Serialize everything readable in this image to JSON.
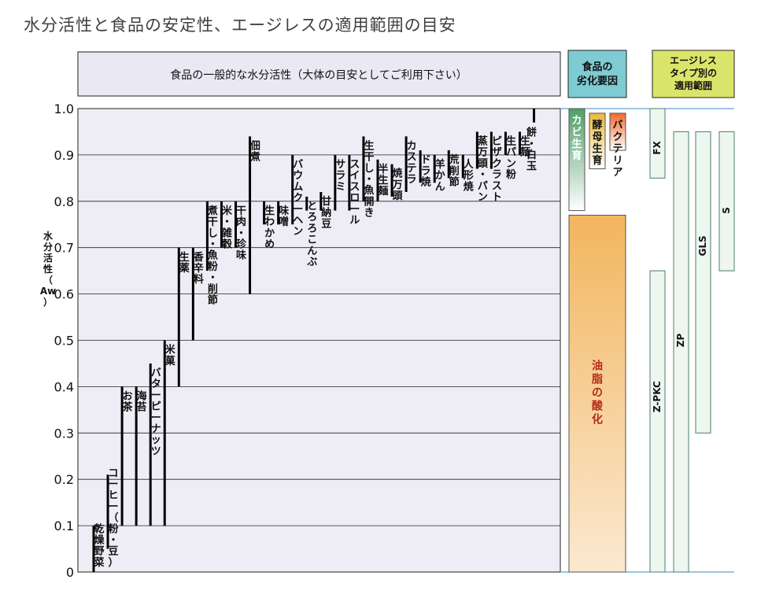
{
  "title": "水分活性と食品の安定性、エージレスの適用範囲の目安",
  "header_main": "食品の一般的な水分活性（大体の目安としてご利用下さい）",
  "header_degradation": [
    "食品の",
    "劣化要因"
  ],
  "header_ageless": [
    "エージレス",
    "タイプ別の",
    "適用範囲"
  ],
  "y_axis_label": [
    "水",
    "分",
    "活",
    "性",
    "（",
    "Aw",
    "）"
  ],
  "colors": {
    "header_main": "#e9e8f3",
    "header_degradation": "#7fcbd3",
    "header_ageless": "#d9e56a",
    "plot_bg": "#eeedf6",
    "mold": "#4f9e6a",
    "yeast": "#e8b83a",
    "bacteria": "#ef6a2a",
    "oil": "#f2b55e",
    "ageless_fill": "#eef6f0",
    "ageless_stroke": "#4a7d6b",
    "range_line": "#000000",
    "blue_line": "#3a88c8"
  },
  "chart_data": {
    "type": "range",
    "ylabel": "水分活性（Aw）",
    "ylim": [
      0,
      1.0
    ],
    "y_ticks": [
      "0",
      "0.1",
      "0.2",
      "0.3",
      "0.4",
      "0.5",
      "0.6",
      "0.7",
      "0.8",
      "0.9",
      "1.0"
    ],
    "foods": [
      {
        "label": [
          "乾",
          "燥",
          "野",
          "菜"
        ],
        "range": [
          0.0,
          0.1
        ]
      },
      {
        "label": [
          "コ",
          "ー",
          "ヒ",
          "ー",
          "（",
          "粉",
          "・",
          "豆",
          "）"
        ],
        "range": [
          0.05,
          0.21
        ]
      },
      {
        "label": [
          "お",
          "茶"
        ],
        "range": [
          0.1,
          0.4
        ]
      },
      {
        "label": [
          "海",
          "苔"
        ],
        "range": [
          0.1,
          0.4
        ]
      },
      {
        "label": [
          "バ",
          "タ",
          "ー",
          "ピ",
          "ー",
          "ナ",
          "ッ",
          "ツ"
        ],
        "range": [
          0.1,
          0.45
        ]
      },
      {
        "label": [
          "米",
          "菓"
        ],
        "range": [
          0.1,
          0.5
        ]
      },
      {
        "label": [
          "生",
          "薬"
        ],
        "range": [
          0.4,
          0.7
        ]
      },
      {
        "label": [
          "香",
          "辛",
          "料"
        ],
        "range": [
          0.5,
          0.7
        ]
      },
      {
        "label": [
          "煮",
          "干",
          "し",
          "・",
          "魚",
          "粉",
          "・",
          "削",
          "節"
        ],
        "range": [
          0.65,
          0.8
        ]
      },
      {
        "label": [
          "米",
          "・",
          "雑",
          "穀"
        ],
        "range": [
          0.7,
          0.8
        ]
      },
      {
        "label": [
          "干",
          "肉",
          "・",
          "珍",
          "味"
        ],
        "range": [
          0.7,
          0.8
        ]
      },
      {
        "label": [
          "佃",
          "煮"
        ],
        "range": [
          0.6,
          0.94
        ]
      },
      {
        "label": [
          "生",
          "わ",
          "か",
          "め"
        ],
        "range": [
          0.75,
          0.8
        ]
      },
      {
        "label": [
          "味",
          "噌"
        ],
        "range": [
          0.75,
          0.8
        ]
      },
      {
        "label": [
          "バ",
          "ウ",
          "ム",
          "ク",
          "ー",
          "ヘ",
          "ン"
        ],
        "range": [
          0.75,
          0.9
        ]
      },
      {
        "label": [
          "と",
          "ろ",
          "ろ",
          "こ",
          "ん",
          "ぶ"
        ],
        "range": [
          0.78,
          0.81
        ]
      },
      {
        "label": [
          "甘",
          "納",
          "豆"
        ],
        "range": [
          0.78,
          0.82
        ]
      },
      {
        "label": [
          "サ",
          "ラ",
          "ミ"
        ],
        "range": [
          0.78,
          0.9
        ]
      },
      {
        "label": [
          "ス",
          "イ",
          "ス",
          "ロ",
          "ー",
          "ル"
        ],
        "range": [
          0.78,
          0.9
        ]
      },
      {
        "label": [
          "生",
          "干",
          "し",
          "・",
          "魚",
          "開",
          "き"
        ],
        "range": [
          0.8,
          0.94
        ]
      },
      {
        "label": [
          "半",
          "生",
          "麺"
        ],
        "range": [
          0.8,
          0.89
        ]
      },
      {
        "label": [
          "焼",
          "万",
          "頭"
        ],
        "range": [
          0.81,
          0.88
        ]
      },
      {
        "label": [
          "カ",
          "ス",
          "テ",
          "ラ"
        ],
        "range": [
          0.82,
          0.94
        ]
      },
      {
        "label": [
          "ド",
          "ラ",
          "焼"
        ],
        "range": [
          0.84,
          0.91
        ]
      },
      {
        "label": [
          "羊",
          "か",
          "ん"
        ],
        "range": [
          0.84,
          0.9
        ]
      },
      {
        "label": [
          "荒",
          "削",
          "節"
        ],
        "range": [
          0.85,
          0.91
        ]
      },
      {
        "label": [
          "人",
          "形",
          "焼"
        ],
        "range": [
          0.85,
          0.9
        ]
      },
      {
        "label": [
          "蒸",
          "万",
          "頭",
          "・",
          "パ",
          "ン"
        ],
        "range": [
          0.87,
          0.95
        ]
      },
      {
        "label": [
          "ピ",
          "ザ",
          "ク",
          "ラ",
          "ス",
          "ト"
        ],
        "range": [
          0.87,
          0.95
        ]
      },
      {
        "label": [
          "生",
          "パ",
          "ン",
          "粉"
        ],
        "range": [
          0.9,
          0.95
        ]
      },
      {
        "label": [
          "生",
          "麺"
        ],
        "range": [
          0.9,
          0.95
        ]
      },
      {
        "label": [
          "餅",
          "・",
          "白",
          "玉"
        ],
        "range": [
          0.97,
          1.0
        ]
      }
    ],
    "degradation_factors": [
      {
        "label": [
          "カ",
          "ビ",
          "生",
          "育"
        ],
        "range": [
          0.78,
          1.0
        ]
      },
      {
        "label": [
          "酵",
          "母",
          "生",
          "育"
        ],
        "range": [
          0.87,
          0.99
        ]
      },
      {
        "label": [
          "バ",
          "ク",
          "テ",
          "リ",
          "ア"
        ],
        "range": [
          0.91,
          0.99
        ]
      },
      {
        "label": [
          "油",
          "脂",
          "の",
          "酸",
          "化"
        ],
        "range": [
          0.0,
          0.77
        ]
      }
    ],
    "ageless_types": [
      {
        "label": "FX",
        "range": [
          0.85,
          1.0
        ]
      },
      {
        "label": "Z-PKC",
        "range": [
          0.0,
          0.65
        ]
      },
      {
        "label": "ZP",
        "range": [
          0.0,
          0.95
        ]
      },
      {
        "label": "GLS",
        "range": [
          0.3,
          0.95
        ]
      },
      {
        "label": "S",
        "range": [
          0.65,
          0.95
        ]
      }
    ]
  }
}
